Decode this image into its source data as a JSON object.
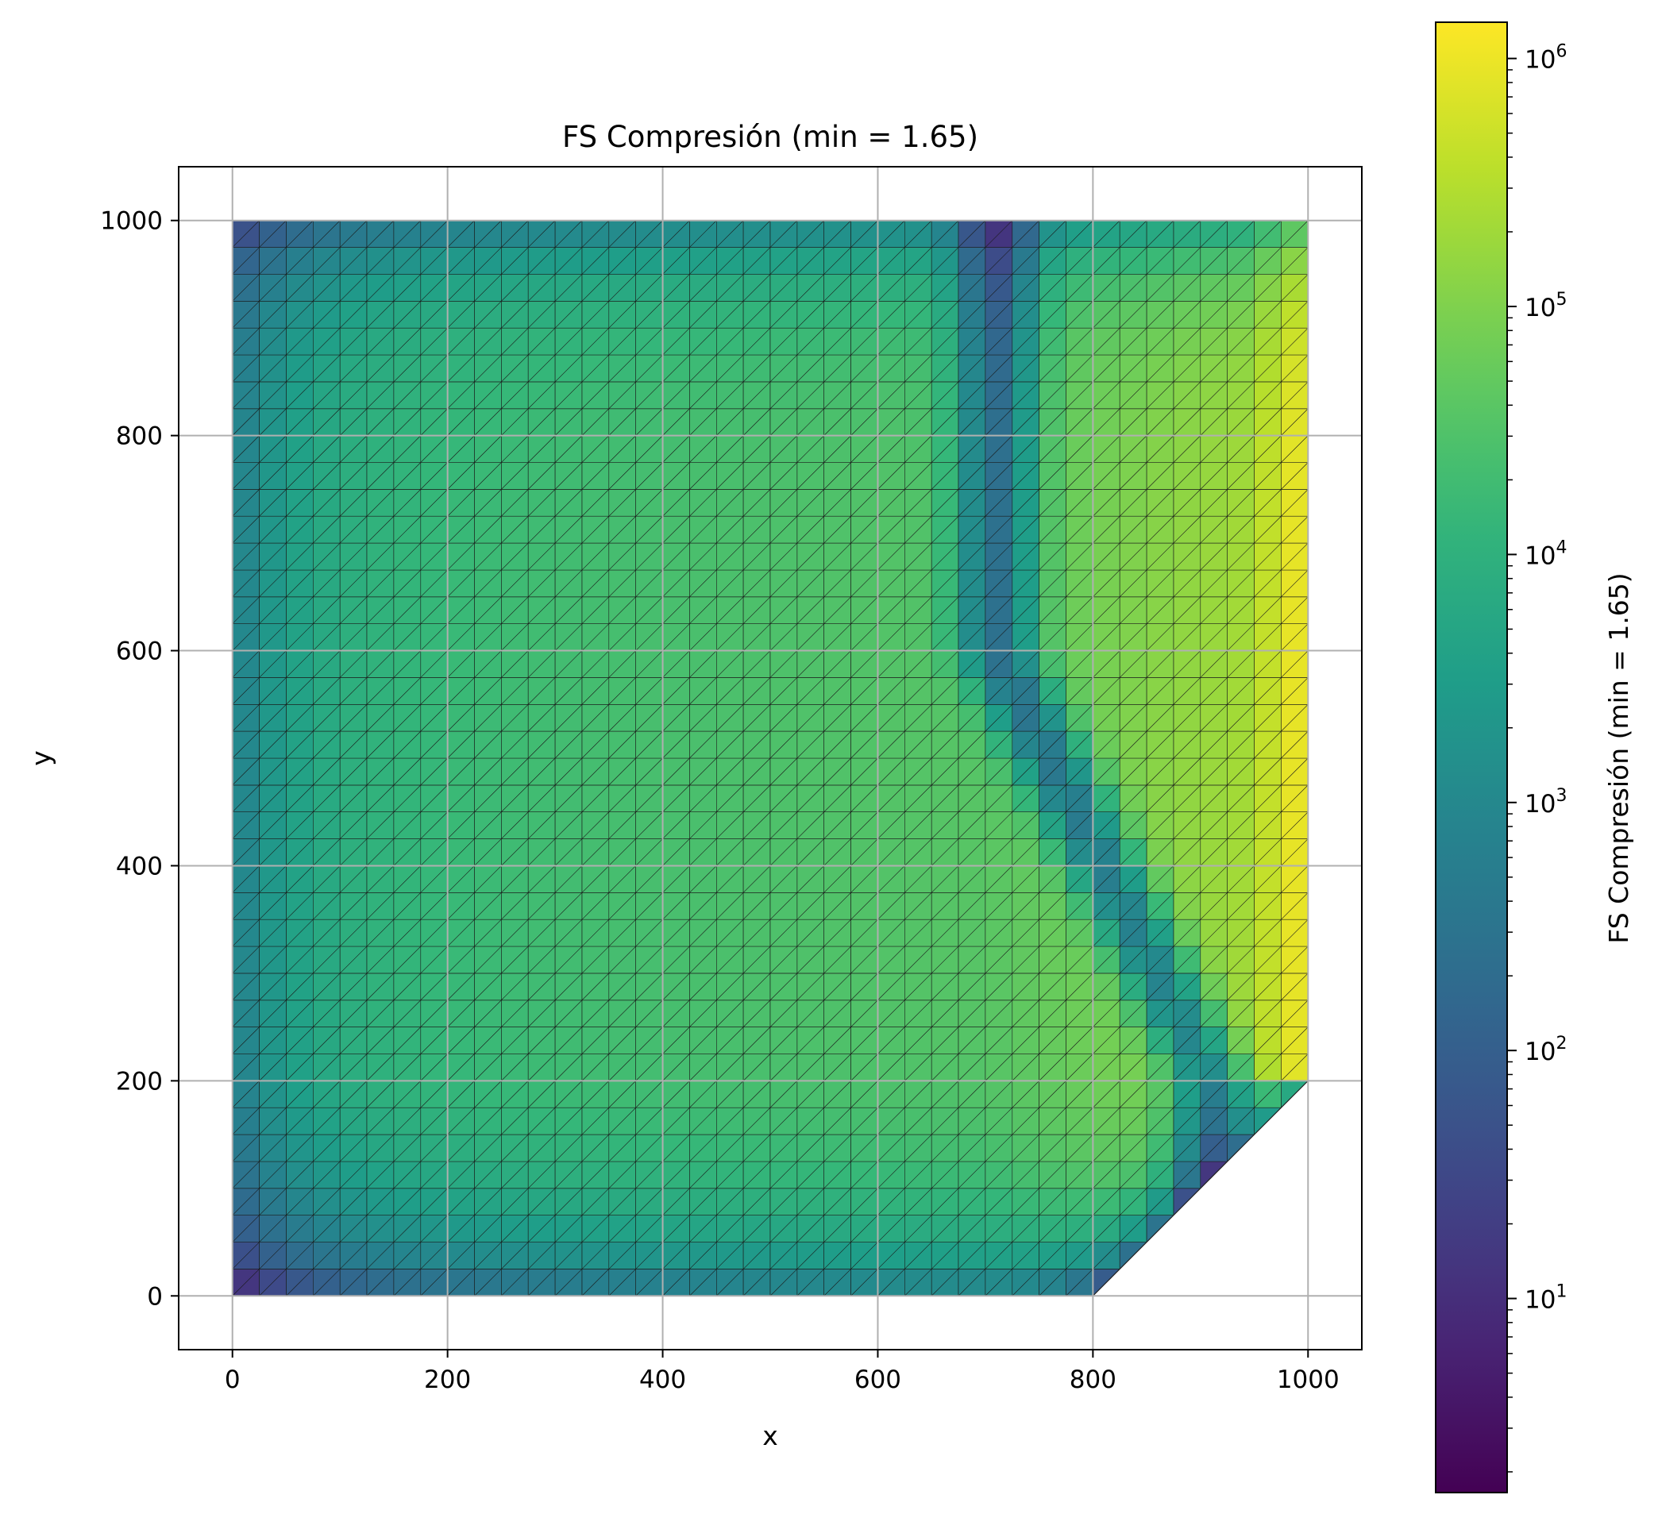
{
  "chart_data": {
    "type": "heatmap",
    "title": "FS Compresión (min = 1.65)",
    "xlabel": "x",
    "ylabel": "y",
    "xlim": [
      -50,
      1050
    ],
    "ylim": [
      -50,
      1050
    ],
    "xticks": [
      0,
      200,
      400,
      600,
      800,
      1000
    ],
    "yticks": [
      0,
      200,
      400,
      600,
      800,
      1000
    ],
    "grid": true,
    "domain_outline": [
      [
        0,
        0
      ],
      [
        800,
        0
      ],
      [
        1000,
        200
      ],
      [
        1000,
        1000
      ],
      [
        0,
        1000
      ]
    ],
    "colorbar": {
      "label": "FS Compresión (min = 1.65)",
      "scale": "log",
      "colormap": "viridis_r",
      "min": 1.65,
      "max": 1400000,
      "ticks": [
        {
          "base": "10",
          "exp": "1"
        },
        {
          "base": "10",
          "exp": "2"
        },
        {
          "base": "10",
          "exp": "3"
        },
        {
          "base": "10",
          "exp": "4"
        },
        {
          "base": "10",
          "exp": "5"
        },
        {
          "base": "10",
          "exp": "6"
        }
      ]
    }
  }
}
